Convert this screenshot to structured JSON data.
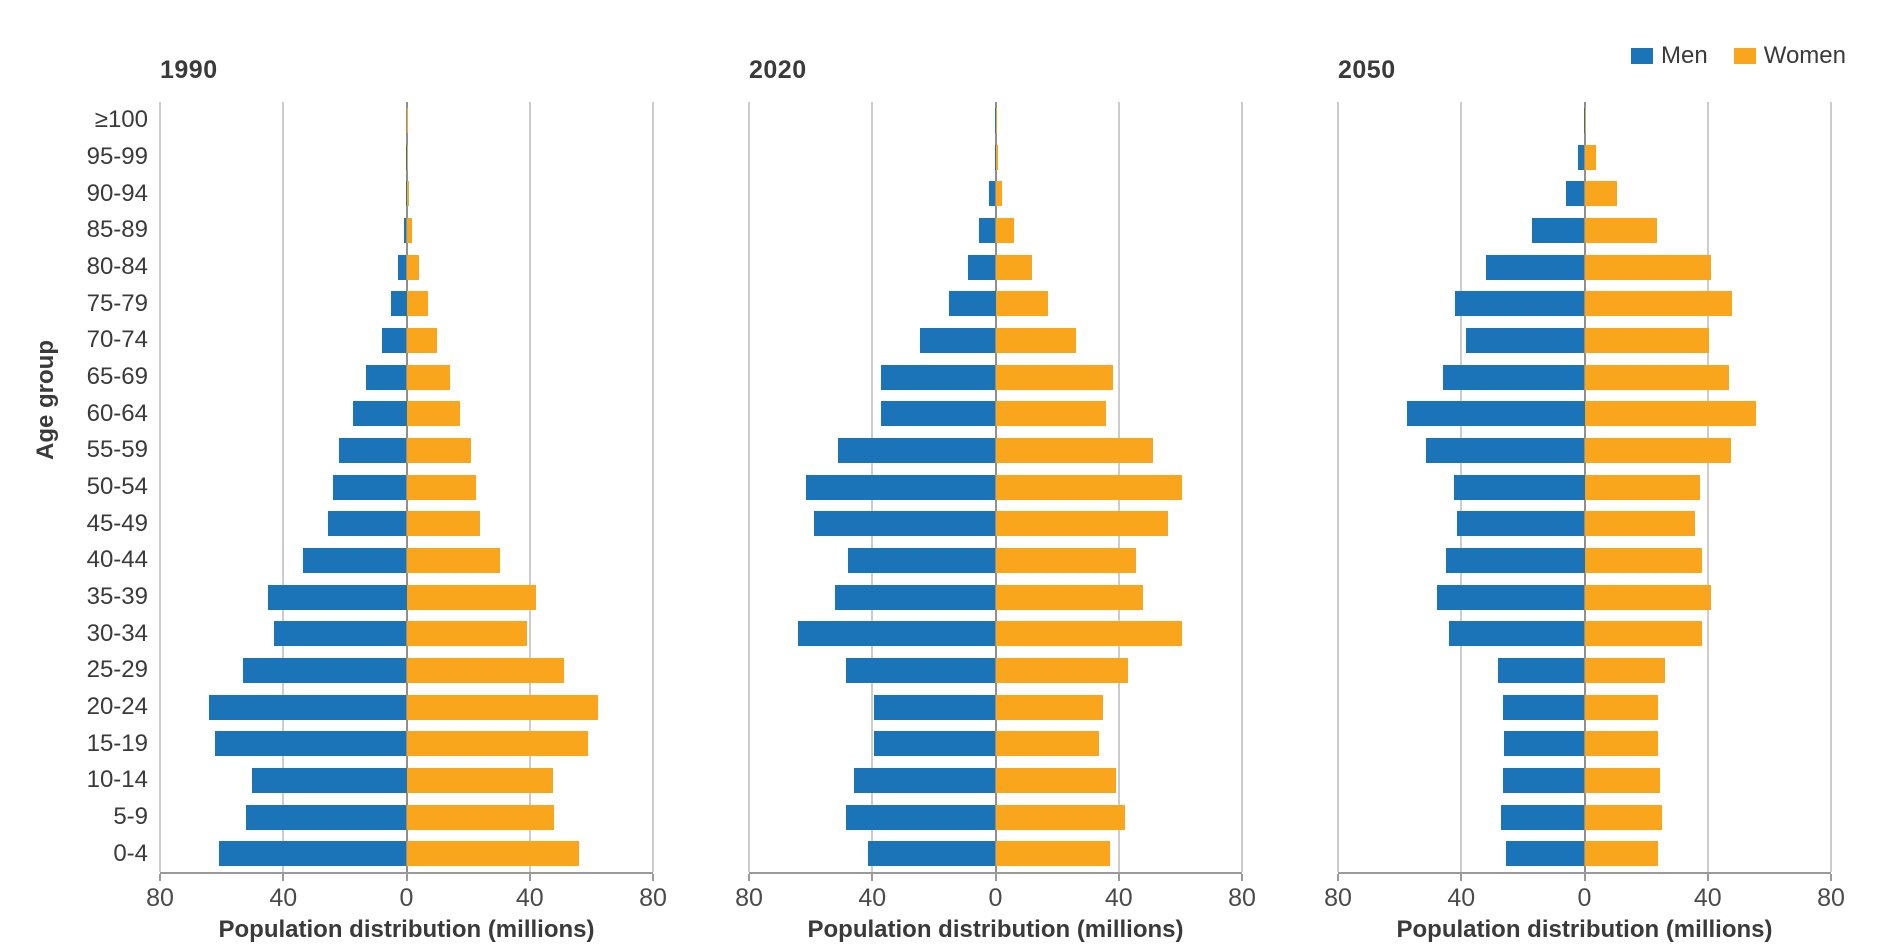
{
  "page": {
    "background": "#ffffff"
  },
  "legend": {
    "items": [
      {
        "label": "Men",
        "color": "#1c74b8"
      },
      {
        "label": "Women",
        "color": "#faa61d"
      }
    ]
  },
  "chart_data": {
    "type": "bar",
    "variant": "population-pyramid",
    "title": "",
    "xlabel": "Population distribution (millions)",
    "ylabel": "Age group",
    "xlim": [
      -80,
      80
    ],
    "xticks": [
      80,
      40,
      0,
      40,
      80
    ],
    "gridline_units": [
      -80,
      -40,
      0,
      40,
      80
    ],
    "grid": true,
    "legend": [
      "Men",
      "Women"
    ],
    "legend_position": "top-right",
    "colors": {
      "men": "#1c74b8",
      "women": "#faa61d"
    },
    "categories_top_to_bottom": [
      "≥100",
      "95-99",
      "90-94",
      "85-89",
      "80-84",
      "75-79",
      "70-74",
      "65-69",
      "60-64",
      "55-59",
      "50-54",
      "45-49",
      "40-44",
      "35-39",
      "30-34",
      "25-29",
      "20-24",
      "15-19",
      "10-14",
      "5-9",
      "0-4"
    ],
    "panels": [
      {
        "title": "1990",
        "series": [
          {
            "name": "Men",
            "side": "left",
            "values": [
              0.02,
              0.05,
              0.1,
              0.8,
              2.6,
              5,
              8,
              13,
              17.5,
              22,
              24,
              25.5,
              33.5,
              45,
              43,
              53,
              64,
              62,
              50,
              52,
              61
            ]
          },
          {
            "name": "Women",
            "side": "right",
            "values": [
              0.05,
              0.2,
              0.8,
              1.9,
              4.1,
              7,
              10,
              14,
              17.5,
              21,
              22.5,
              24,
              30.5,
              42,
              39,
              51,
              62,
              59,
              47.5,
              48,
              56
            ]
          }
        ]
      },
      {
        "title": "2020",
        "series": [
          {
            "name": "Men",
            "side": "left",
            "values": [
              0.05,
              0.3,
              2,
              5.5,
              9,
              15,
              24.5,
              37,
              37,
              51,
              61.5,
              59,
              48,
              52,
              64,
              48.5,
              39.5,
              39.5,
              46,
              48.5,
              41.5
            ]
          },
          {
            "name": "Women",
            "side": "right",
            "values": [
              0.1,
              0.7,
              2.2,
              6,
              12,
              17,
              26,
              38,
              36,
              51,
              60.5,
              56,
              45.5,
              48,
              60.5,
              43,
              35,
              33.5,
              39,
              42,
              37
            ]
          }
        ]
      },
      {
        "title": "2050",
        "series": [
          {
            "name": "Men",
            "side": "left",
            "values": [
              0.2,
              2,
              6,
              17,
              32,
              42,
              38.5,
              46,
              57.5,
              51.5,
              42.5,
              41.5,
              45,
              48,
              44,
              28,
              26.5,
              26,
              26.5,
              27,
              25.5
            ]
          },
          {
            "name": "Women",
            "side": "right",
            "values": [
              0.6,
              3.7,
              10.5,
              23.5,
              41,
              48,
              40.5,
              47,
              55.5,
              47.5,
              37.5,
              36,
              38,
              41,
              38,
              26,
              24,
              24,
              24.5,
              25,
              24
            ]
          }
        ]
      }
    ]
  }
}
